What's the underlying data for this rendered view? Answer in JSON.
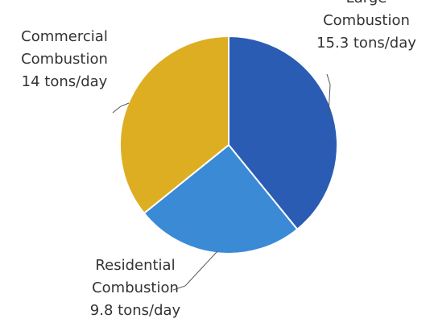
{
  "chart_data": {
    "type": "pie",
    "categories": [
      "Large Combustion",
      "Residential Combustion",
      "Commercial Combustion"
    ],
    "values": [
      15.3,
      9.8,
      14
    ],
    "value_labels": [
      "15.3 tons/day",
      "9.8 tons/day",
      "14 tons/day"
    ],
    "colors": [
      "#2a5cb4",
      "#3a8ad6",
      "#deae22"
    ]
  }
}
